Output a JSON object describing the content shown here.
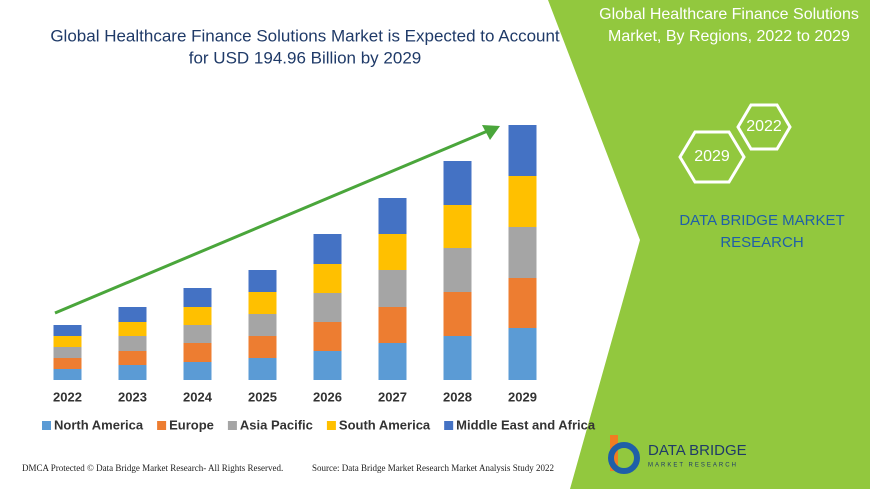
{
  "chart_data": {
    "type": "bar",
    "stacked": true,
    "title": "Global Healthcare Finance Solutions Market is Expected to Account",
    "subtitle": "for USD 194.96 Billion by 2029",
    "categories": [
      "2022",
      "2023",
      "2024",
      "2025",
      "2026",
      "2027",
      "2028",
      "2029"
    ],
    "series": [
      {
        "name": "North America",
        "color": "#5b9bd5",
        "values": [
          11,
          15,
          18,
          22,
          29,
          37,
          44,
          52
        ]
      },
      {
        "name": "Europe",
        "color": "#ed7d31",
        "values": [
          11,
          14,
          19,
          22,
          29,
          36,
          44,
          50
        ]
      },
      {
        "name": "Asia Pacific",
        "color": "#a5a5a5",
        "values": [
          11,
          15,
          18,
          22,
          29,
          37,
          44,
          51
        ]
      },
      {
        "name": "South America",
        "color": "#ffc000",
        "values": [
          11,
          14,
          18,
          22,
          29,
          36,
          43,
          51
        ]
      },
      {
        "name": "Middle East and Africa",
        "color": "#4472c4",
        "values": [
          11,
          15,
          19,
          22,
          30,
          36,
          44,
          51
        ]
      }
    ],
    "ylim": [
      0,
      270
    ]
  },
  "panel": {
    "title_line1": "Global Healthcare Finance Solutions",
    "title_line2": "Market, By Regions, 2022 to 2029",
    "hex_a": "2022",
    "hex_b": "2029",
    "brand_line1": "DATA BRIDGE MARKET",
    "brand_line2": "RESEARCH"
  },
  "logo": {
    "name": "DATA BRIDGE",
    "tagline": "MARKET RESEARCH"
  },
  "footer": {
    "left": "DMCA Protected © Data Bridge Market Research- All Rights Reserved.",
    "right": "Source: Data Bridge Market Research Market Analysis Study 2022"
  }
}
